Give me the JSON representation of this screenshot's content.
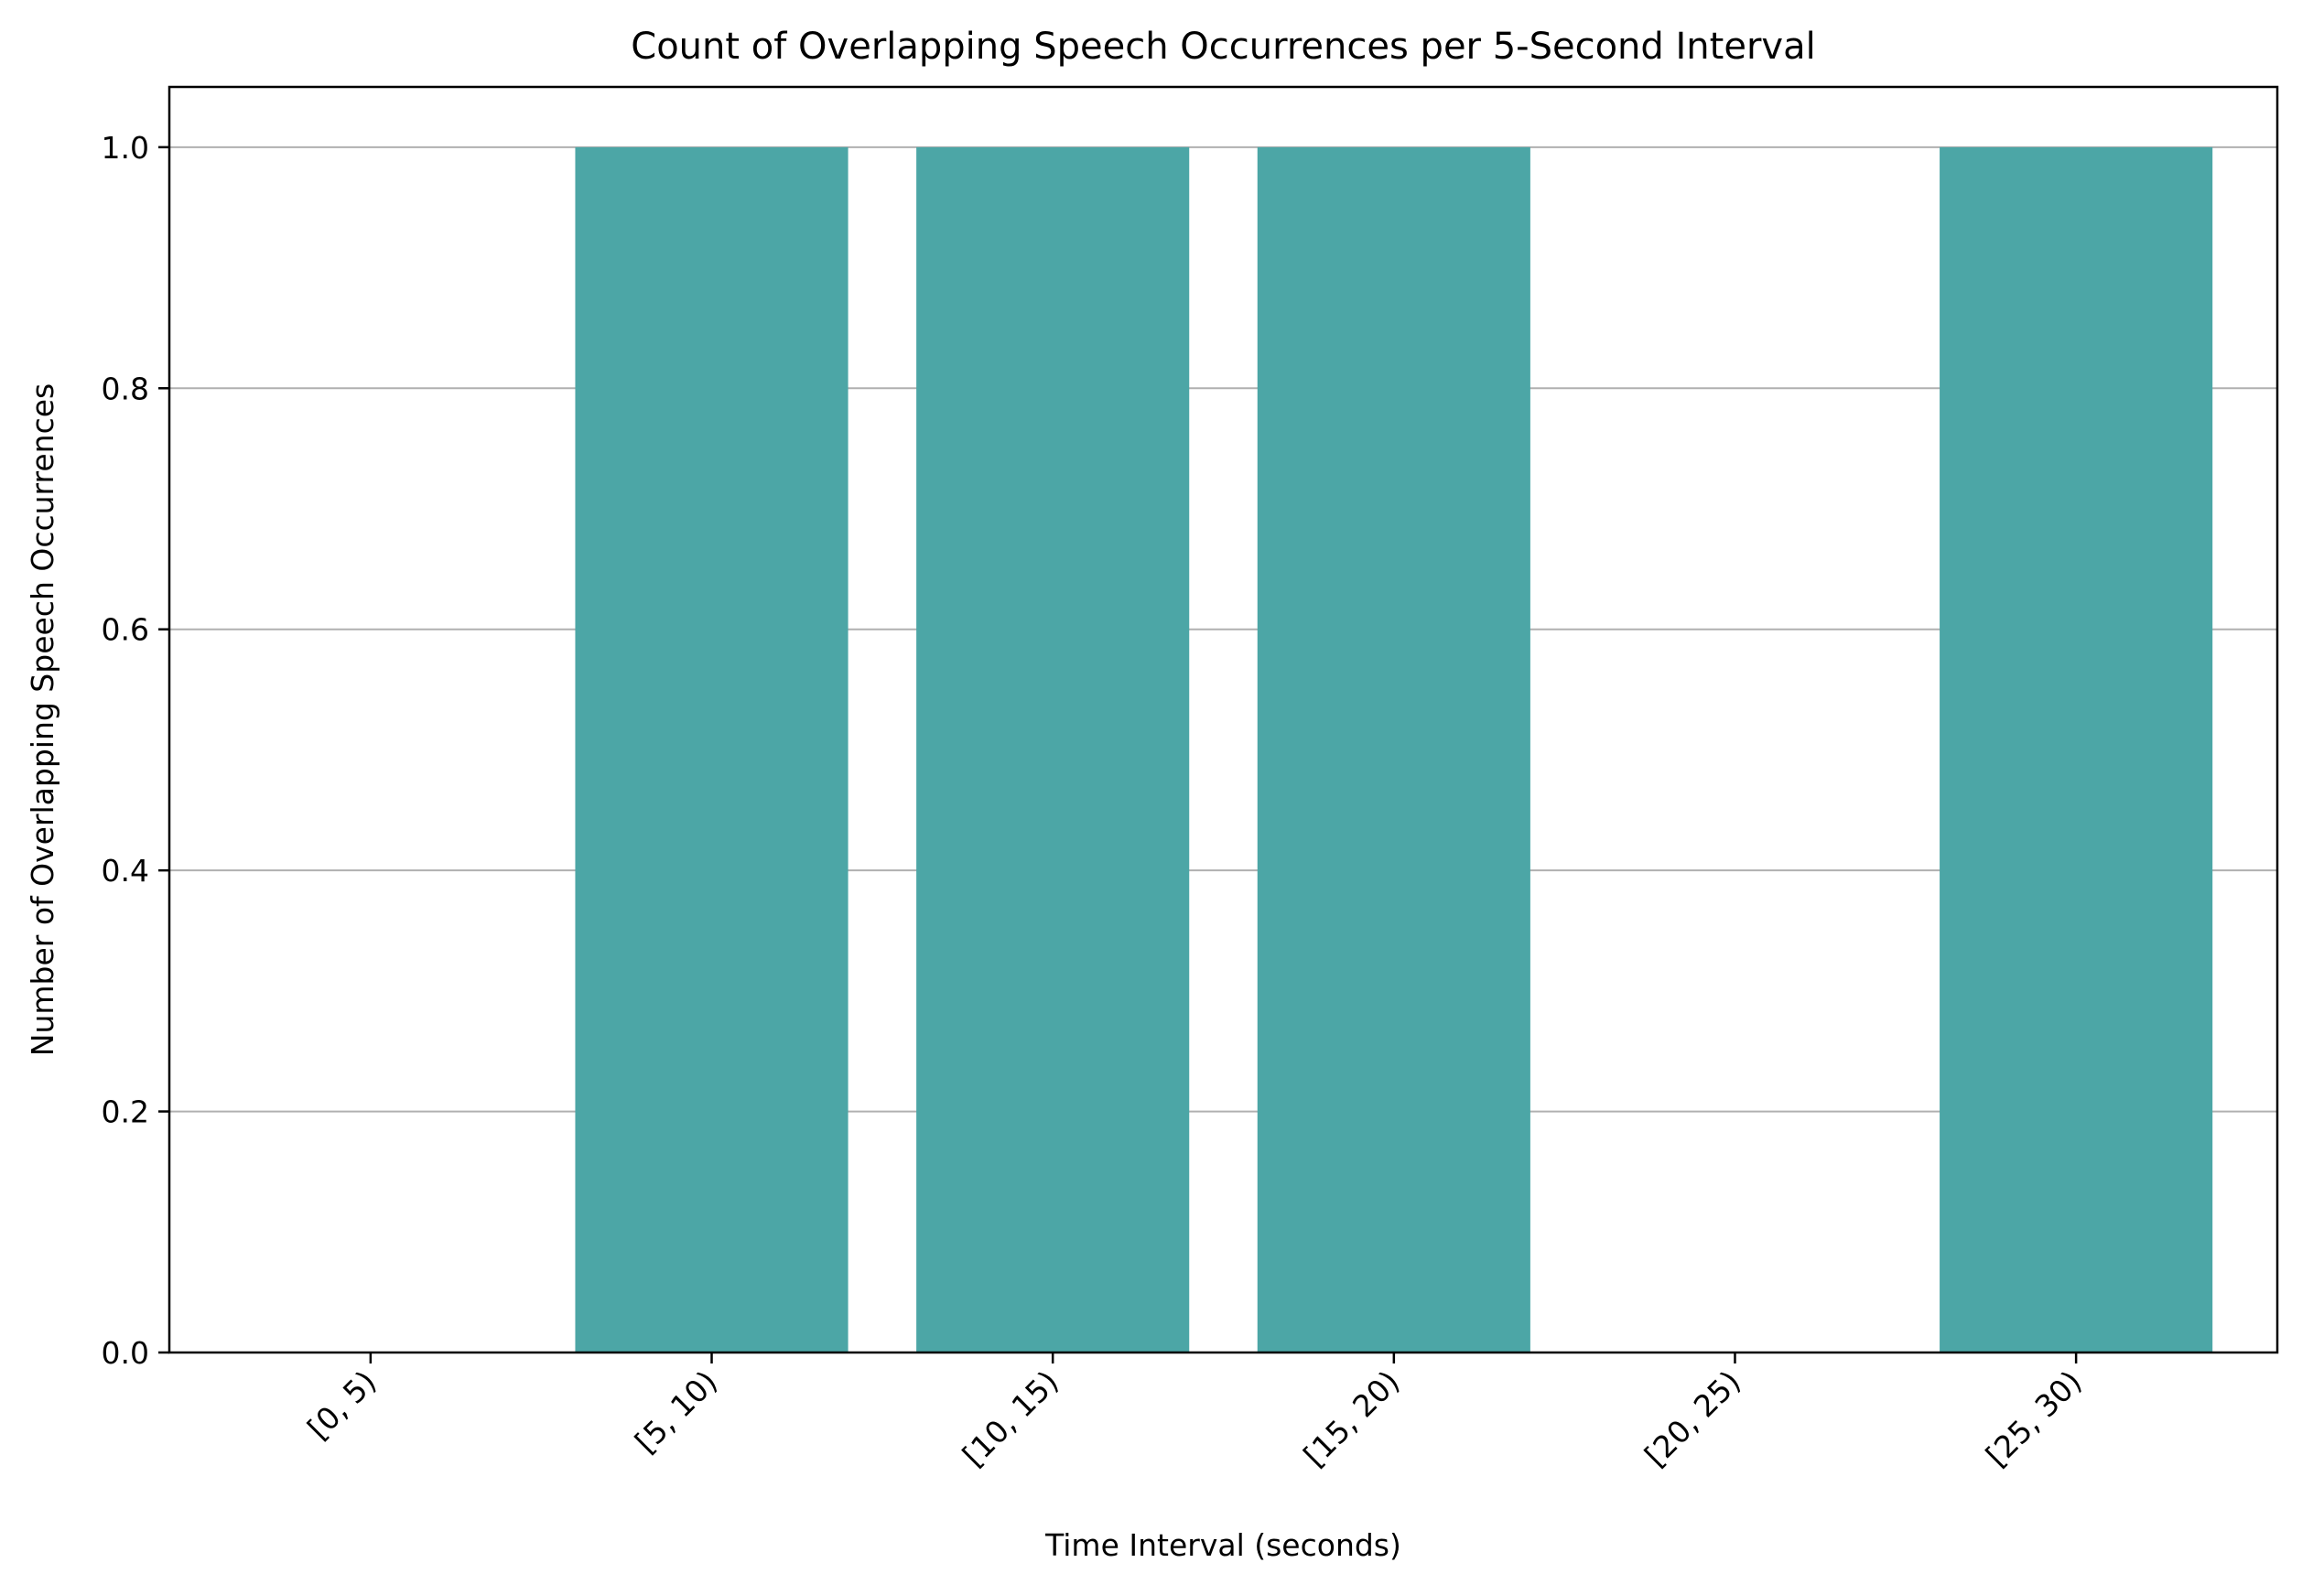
{
  "chart_data": {
    "type": "bar",
    "title": "Count of Overlapping Speech Occurrences per 5-Second Interval",
    "xlabel": "Time Interval (seconds)",
    "ylabel": "Number of Overlapping Speech Occurrences",
    "categories": [
      "[0, 5)",
      "[5, 10)",
      "[10, 15)",
      "[15, 20)",
      "[20, 25)",
      "[25, 30)"
    ],
    "values": [
      0,
      1,
      1,
      1,
      0,
      1
    ],
    "ylim": [
      0,
      1.05
    ],
    "yticks": [
      0.0,
      0.2,
      0.4,
      0.6,
      0.8,
      1.0
    ],
    "ytick_labels": [
      "0.0",
      "0.2",
      "0.4",
      "0.6",
      "0.8",
      "1.0"
    ],
    "grid": "y-axis",
    "legend": "none",
    "bar_color": "#4ca6a6",
    "grid_color": "#b0b0b0"
  }
}
